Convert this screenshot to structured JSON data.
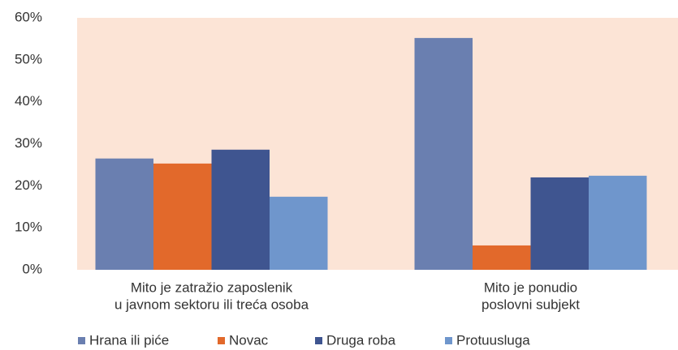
{
  "chart_data": {
    "type": "bar",
    "categories": [
      [
        "Mito je zatražio zaposlenik",
        "u javnom sektoru ili treća osoba"
      ],
      [
        "Mito je ponudio",
        "poslovni subjekt"
      ]
    ],
    "series": [
      {
        "name": "Hrana ili piće",
        "color": "#6a7fb0",
        "values": [
          26.5,
          55.2
        ]
      },
      {
        "name": "Novac",
        "color": "#e2692b",
        "values": [
          25.3,
          5.8
        ]
      },
      {
        "name": "Druga roba",
        "color": "#3f5590",
        "values": [
          28.6,
          22
        ]
      },
      {
        "name": "Protuusluga",
        "color": "#6f96cc",
        "values": [
          17.4,
          22.4
        ]
      }
    ],
    "ylim": [
      0,
      60
    ],
    "yticks": [
      {
        "value": 0,
        "label": "0%"
      },
      {
        "value": 10,
        "label": "10%"
      },
      {
        "value": 20,
        "label": "20%"
      },
      {
        "value": 30,
        "label": "30%"
      },
      {
        "value": 40,
        "label": "40%"
      },
      {
        "value": 50,
        "label": "50%"
      },
      {
        "value": 60,
        "label": "60%"
      }
    ],
    "legend": "bottom"
  }
}
